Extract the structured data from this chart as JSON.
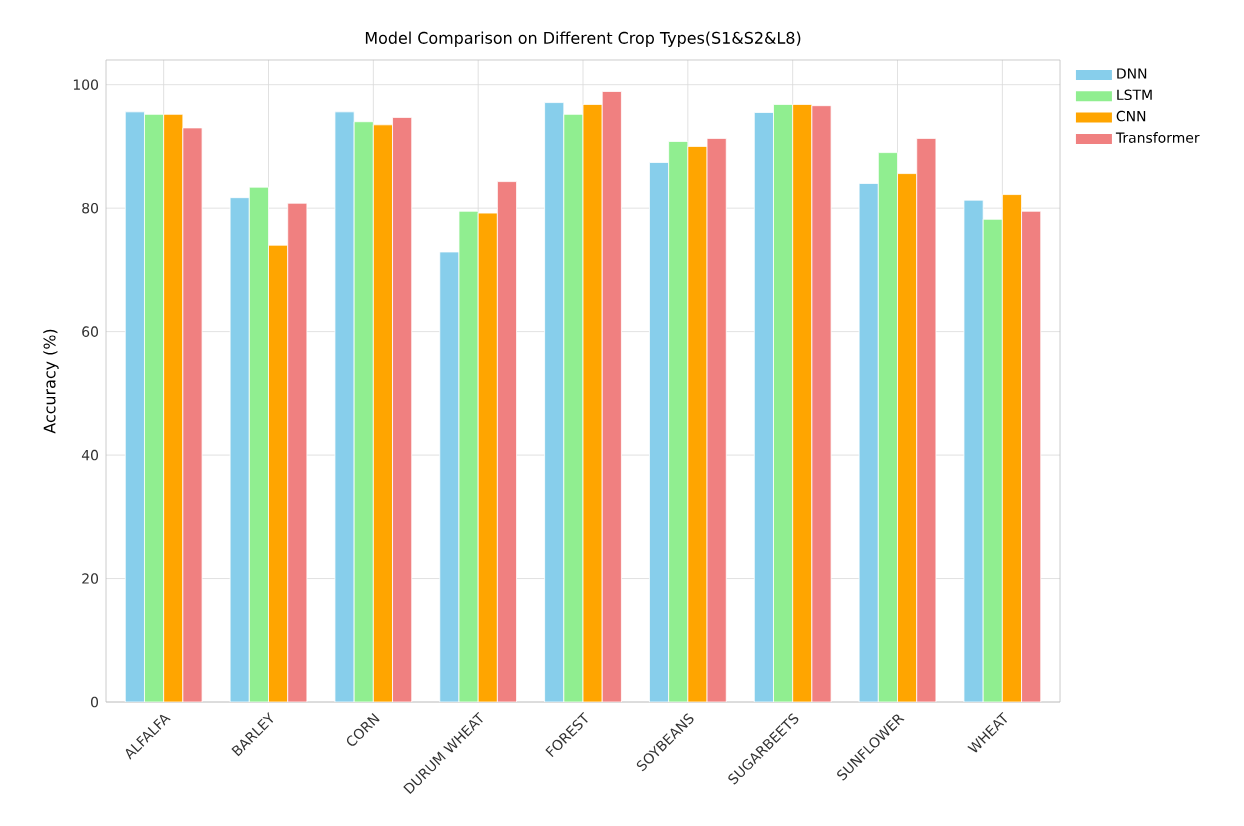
{
  "chart_data": {
    "type": "bar",
    "title": "Model Comparison on Different Crop Types(S1&S2&L8)",
    "ylabel": "Accuracy (%)",
    "categories": [
      "ALFALFA",
      "BARLEY",
      "CORN",
      "DURUM WHEAT",
      "FOREST",
      "SOYBEANS",
      "SUGARBEETS",
      "SUNFLOWER",
      "WHEAT"
    ],
    "series": [
      {
        "name": "DNN",
        "color": "#87ceeb",
        "values": [
          95.6,
          81.7,
          95.6,
          72.9,
          97.1,
          87.4,
          95.5,
          84.0,
          81.3
        ]
      },
      {
        "name": "LSTM",
        "color": "#90ee90",
        "values": [
          95.2,
          83.4,
          94.0,
          79.5,
          95.2,
          90.8,
          96.8,
          89.0,
          78.2
        ]
      },
      {
        "name": "CNN",
        "color": "#ffa500",
        "values": [
          95.2,
          74.0,
          93.5,
          79.2,
          96.8,
          90.0,
          96.8,
          85.6,
          82.2
        ]
      },
      {
        "name": "Transformer",
        "color": "#f08080",
        "values": [
          93.0,
          80.8,
          94.7,
          84.3,
          98.9,
          91.3,
          96.6,
          91.3,
          79.5
        ]
      }
    ],
    "ylim": [
      0,
      104
    ],
    "yticks": [
      0,
      20,
      40,
      60,
      80,
      100
    ],
    "grid": true,
    "legend": "top right"
  }
}
